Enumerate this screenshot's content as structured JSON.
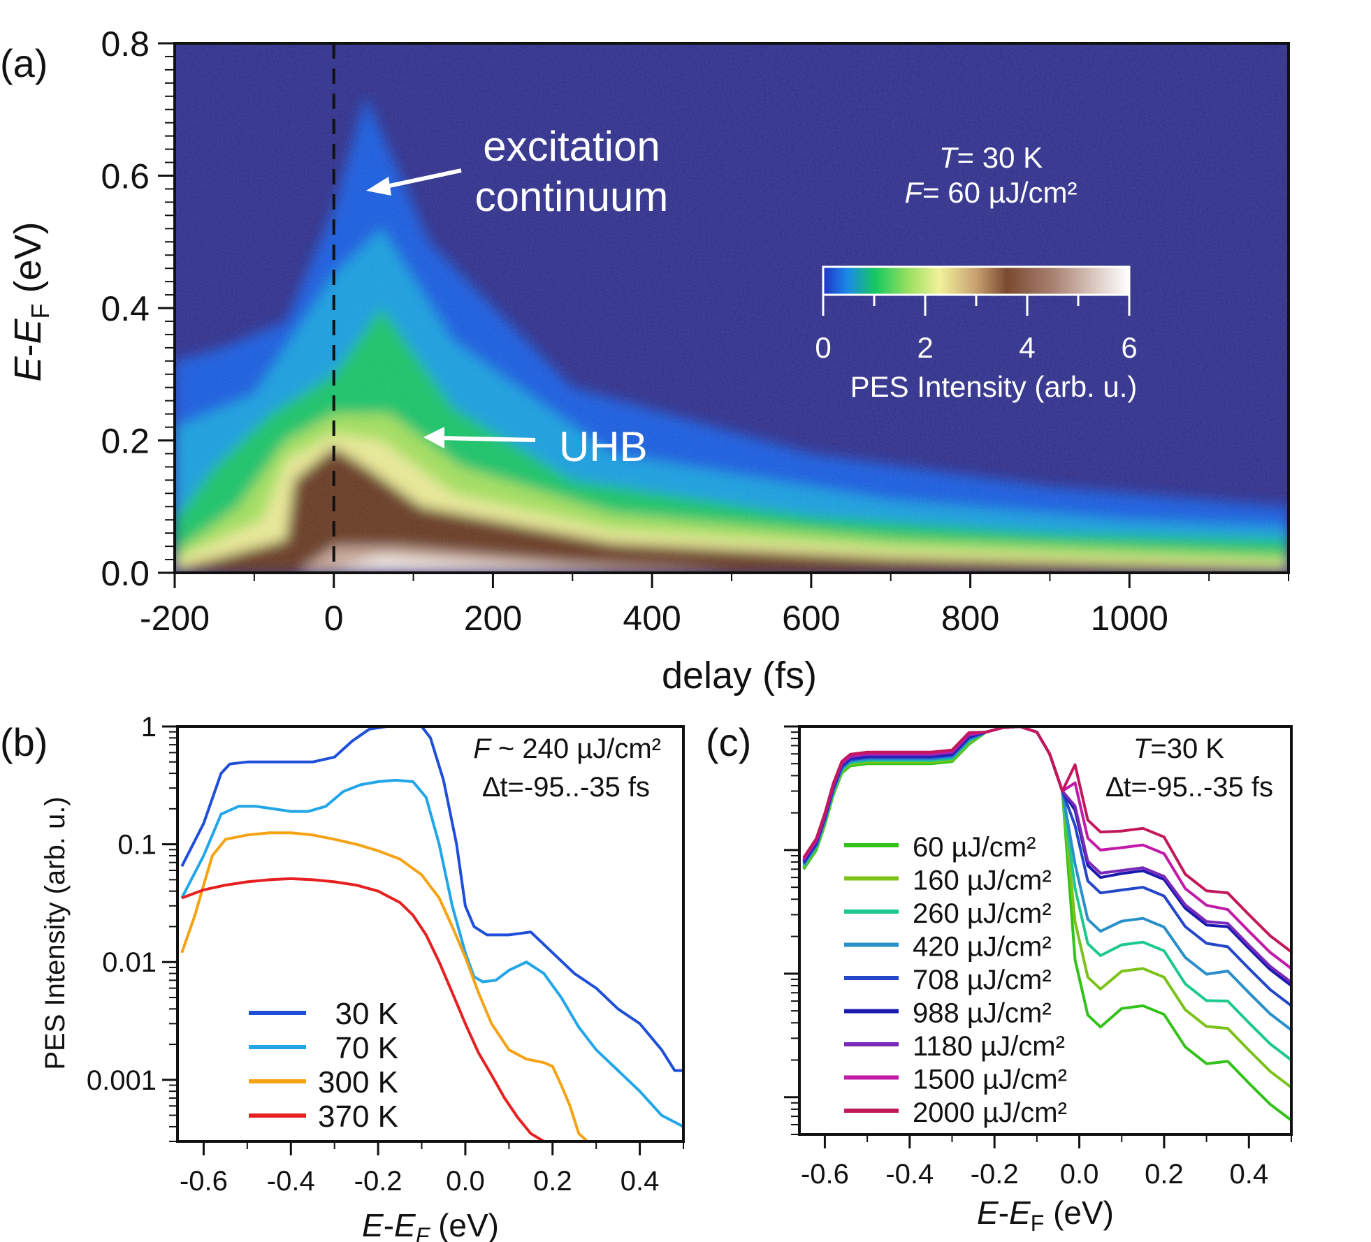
{
  "colors": {
    "map_background": "#33338f",
    "series_b": [
      "#1f4fd8",
      "#22a6e8",
      "#f5a315",
      "#e62020"
    ],
    "series_c": [
      "#33c21a",
      "#7cc21a",
      "#1cc98a",
      "#2a8fc9",
      "#2446c9",
      "#1a1ab0",
      "#7a2ab8",
      "#c21aa8",
      "#c2185b"
    ]
  },
  "chart_data": [
    {
      "panel": "(a)",
      "type": "heatmap",
      "xlabel": "delay (fs)",
      "ylabel_main": "E",
      "ylabel_sub": "F",
      "ylabel_suffix": "(eV)",
      "xlim": [
        -200,
        1200
      ],
      "ylim": [
        0,
        0.8
      ],
      "x_ticks": [
        -200,
        0,
        200,
        400,
        600,
        800,
        1000
      ],
      "y_ticks": [
        "0.0",
        "0.2",
        "0.4",
        "0.6",
        "0.8"
      ],
      "time_zero_line": 0,
      "annotations": {
        "excitation": [
          "excitation",
          "continuum"
        ],
        "uhb": "UHB",
        "temp_var": "T",
        "temp_val": "= 30 K",
        "fluence_var": "F",
        "fluence_val": "= 60 µJ/cm²"
      },
      "colorbar": {
        "label": "PES Intensity (arb. u.)",
        "ticks": [
          "0",
          "2",
          "4",
          "6"
        ],
        "range": [
          0,
          6
        ]
      },
      "features": [
        {
          "name": "UHB",
          "x": 0,
          "y": 0.17
        },
        {
          "name": "excitation continuum",
          "x": 40,
          "y": 0.6
        }
      ]
    },
    {
      "panel": "(b)",
      "type": "line",
      "log_y": true,
      "xlabel_main": "E",
      "xlabel_sub": "F",
      "xlabel_suffix": "(eV)",
      "ylabel": "PES Intensity (arb. u.)",
      "xlim": [
        -0.66,
        0.5
      ],
      "ylim": [
        0.0003,
        1
      ],
      "x_ticks": [
        "-0.6",
        "-0.4",
        "-0.2",
        "0.0",
        "0.2",
        "0.4"
      ],
      "y_ticks": [
        {
          "value": 1,
          "label": "1"
        },
        {
          "value": 0.1,
          "label": "0.1"
        },
        {
          "value": 0.01,
          "label": "0.01"
        },
        {
          "value": 0.001,
          "label": "0.001"
        }
      ],
      "annotation_line1_var": "F",
      "annotation_line1_val": " ~ 240 µJ/cm²",
      "annotation_line2": "∆t=-95..-35 fs",
      "series": [
        {
          "name": "30 K",
          "x": [
            -0.65,
            -0.6,
            -0.56,
            -0.54,
            -0.5,
            -0.45,
            -0.4,
            -0.35,
            -0.3,
            -0.26,
            -0.22,
            -0.18,
            -0.14,
            -0.1,
            -0.08,
            -0.05,
            -0.02,
            0.0,
            0.02,
            0.05,
            0.1,
            0.15,
            0.2,
            0.25,
            0.3,
            0.35,
            0.4,
            0.45,
            0.48,
            0.5
          ],
          "y": [
            0.065,
            0.15,
            0.4,
            0.48,
            0.5,
            0.5,
            0.5,
            0.5,
            0.55,
            0.75,
            0.95,
            1.0,
            1.0,
            1.0,
            0.8,
            0.35,
            0.1,
            0.03,
            0.02,
            0.017,
            0.017,
            0.018,
            0.012,
            0.008,
            0.006,
            0.004,
            0.003,
            0.0018,
            0.0012,
            0.0012
          ]
        },
        {
          "name": "70 K",
          "x": [
            -0.65,
            -0.6,
            -0.56,
            -0.52,
            -0.48,
            -0.44,
            -0.4,
            -0.36,
            -0.32,
            -0.28,
            -0.24,
            -0.2,
            -0.16,
            -0.12,
            -0.09,
            -0.06,
            -0.03,
            0.0,
            0.02,
            0.04,
            0.07,
            0.1,
            0.14,
            0.18,
            0.22,
            0.26,
            0.3,
            0.35,
            0.4,
            0.45,
            0.5
          ],
          "y": [
            0.035,
            0.08,
            0.18,
            0.21,
            0.21,
            0.2,
            0.19,
            0.19,
            0.21,
            0.28,
            0.32,
            0.34,
            0.35,
            0.34,
            0.25,
            0.1,
            0.03,
            0.012,
            0.0075,
            0.0068,
            0.007,
            0.0085,
            0.01,
            0.008,
            0.005,
            0.0028,
            0.0018,
            0.0012,
            0.0008,
            0.0005,
            0.0004
          ]
        },
        {
          "name": "300 K",
          "x": [
            -0.65,
            -0.62,
            -0.6,
            -0.58,
            -0.55,
            -0.5,
            -0.45,
            -0.4,
            -0.35,
            -0.3,
            -0.25,
            -0.2,
            -0.15,
            -0.1,
            -0.06,
            -0.03,
            0.0,
            0.03,
            0.06,
            0.1,
            0.14,
            0.18,
            0.2,
            0.22,
            0.24,
            0.26,
            0.28
          ],
          "y": [
            0.012,
            0.025,
            0.045,
            0.08,
            0.11,
            0.12,
            0.125,
            0.125,
            0.12,
            0.11,
            0.1,
            0.088,
            0.075,
            0.055,
            0.035,
            0.02,
            0.011,
            0.0055,
            0.003,
            0.0018,
            0.0015,
            0.0014,
            0.0013,
            0.0009,
            0.0006,
            0.00035,
            0.0003
          ]
        },
        {
          "name": "370 K",
          "x": [
            -0.65,
            -0.6,
            -0.55,
            -0.5,
            -0.45,
            -0.4,
            -0.35,
            -0.3,
            -0.25,
            -0.2,
            -0.15,
            -0.12,
            -0.09,
            -0.06,
            -0.03,
            0.0,
            0.03,
            0.06,
            0.09,
            0.12,
            0.15,
            0.18
          ],
          "y": [
            0.035,
            0.041,
            0.045,
            0.048,
            0.05,
            0.051,
            0.05,
            0.048,
            0.045,
            0.04,
            0.032,
            0.025,
            0.017,
            0.01,
            0.0055,
            0.003,
            0.0017,
            0.0011,
            0.0007,
            0.00048,
            0.00035,
            0.0003
          ]
        }
      ]
    },
    {
      "panel": "(c)",
      "type": "line",
      "log_y": true,
      "xlabel_main": "E",
      "xlabel_sub": "F",
      "xlabel_suffix": "(eV)",
      "xlim": [
        -0.66,
        0.5
      ],
      "ylim": [
        0.0005,
        1
      ],
      "x_ticks": [
        "-0.6",
        "-0.4",
        "-0.2",
        "0.0",
        "0.2",
        "0.4"
      ],
      "y_ticks": [
        {
          "value": 1
        },
        {
          "value": 0.1
        },
        {
          "value": 0.01
        },
        {
          "value": 0.001
        }
      ],
      "annotation_line1_var": "T",
      "annotation_line1_val": "=30 K",
      "annotation_line2": "∆t=-95..-35 fs",
      "series": [
        {
          "name": "60 µJ/cm²",
          "tail": [
            0.0037,
            0.0055,
            0.0034,
            0.00065
          ]
        },
        {
          "name": "160 µJ/cm²",
          "tail": [
            0.0075,
            0.011,
            0.0068,
            0.0012
          ]
        },
        {
          "name": "260 µJ/cm²",
          "tail": [
            0.014,
            0.018,
            0.011,
            0.002
          ]
        },
        {
          "name": "420 µJ/cm²",
          "tail": [
            0.022,
            0.028,
            0.018,
            0.0035
          ]
        },
        {
          "name": "708 µJ/cm²",
          "tail": [
            0.045,
            0.05,
            0.032,
            0.0055
          ]
        },
        {
          "name": "988 µJ/cm²",
          "tail": [
            0.06,
            0.068,
            0.045,
            0.008
          ]
        },
        {
          "name": "1180 µJ/cm²",
          "tail": [
            0.065,
            0.072,
            0.048,
            0.0085
          ]
        },
        {
          "name": "1500 µJ/cm²",
          "tail": [
            0.1,
            0.11,
            0.065,
            0.011
          ]
        },
        {
          "name": "2000 µJ/cm²",
          "tail": [
            0.14,
            0.15,
            0.085,
            0.015
          ]
        }
      ]
    }
  ]
}
